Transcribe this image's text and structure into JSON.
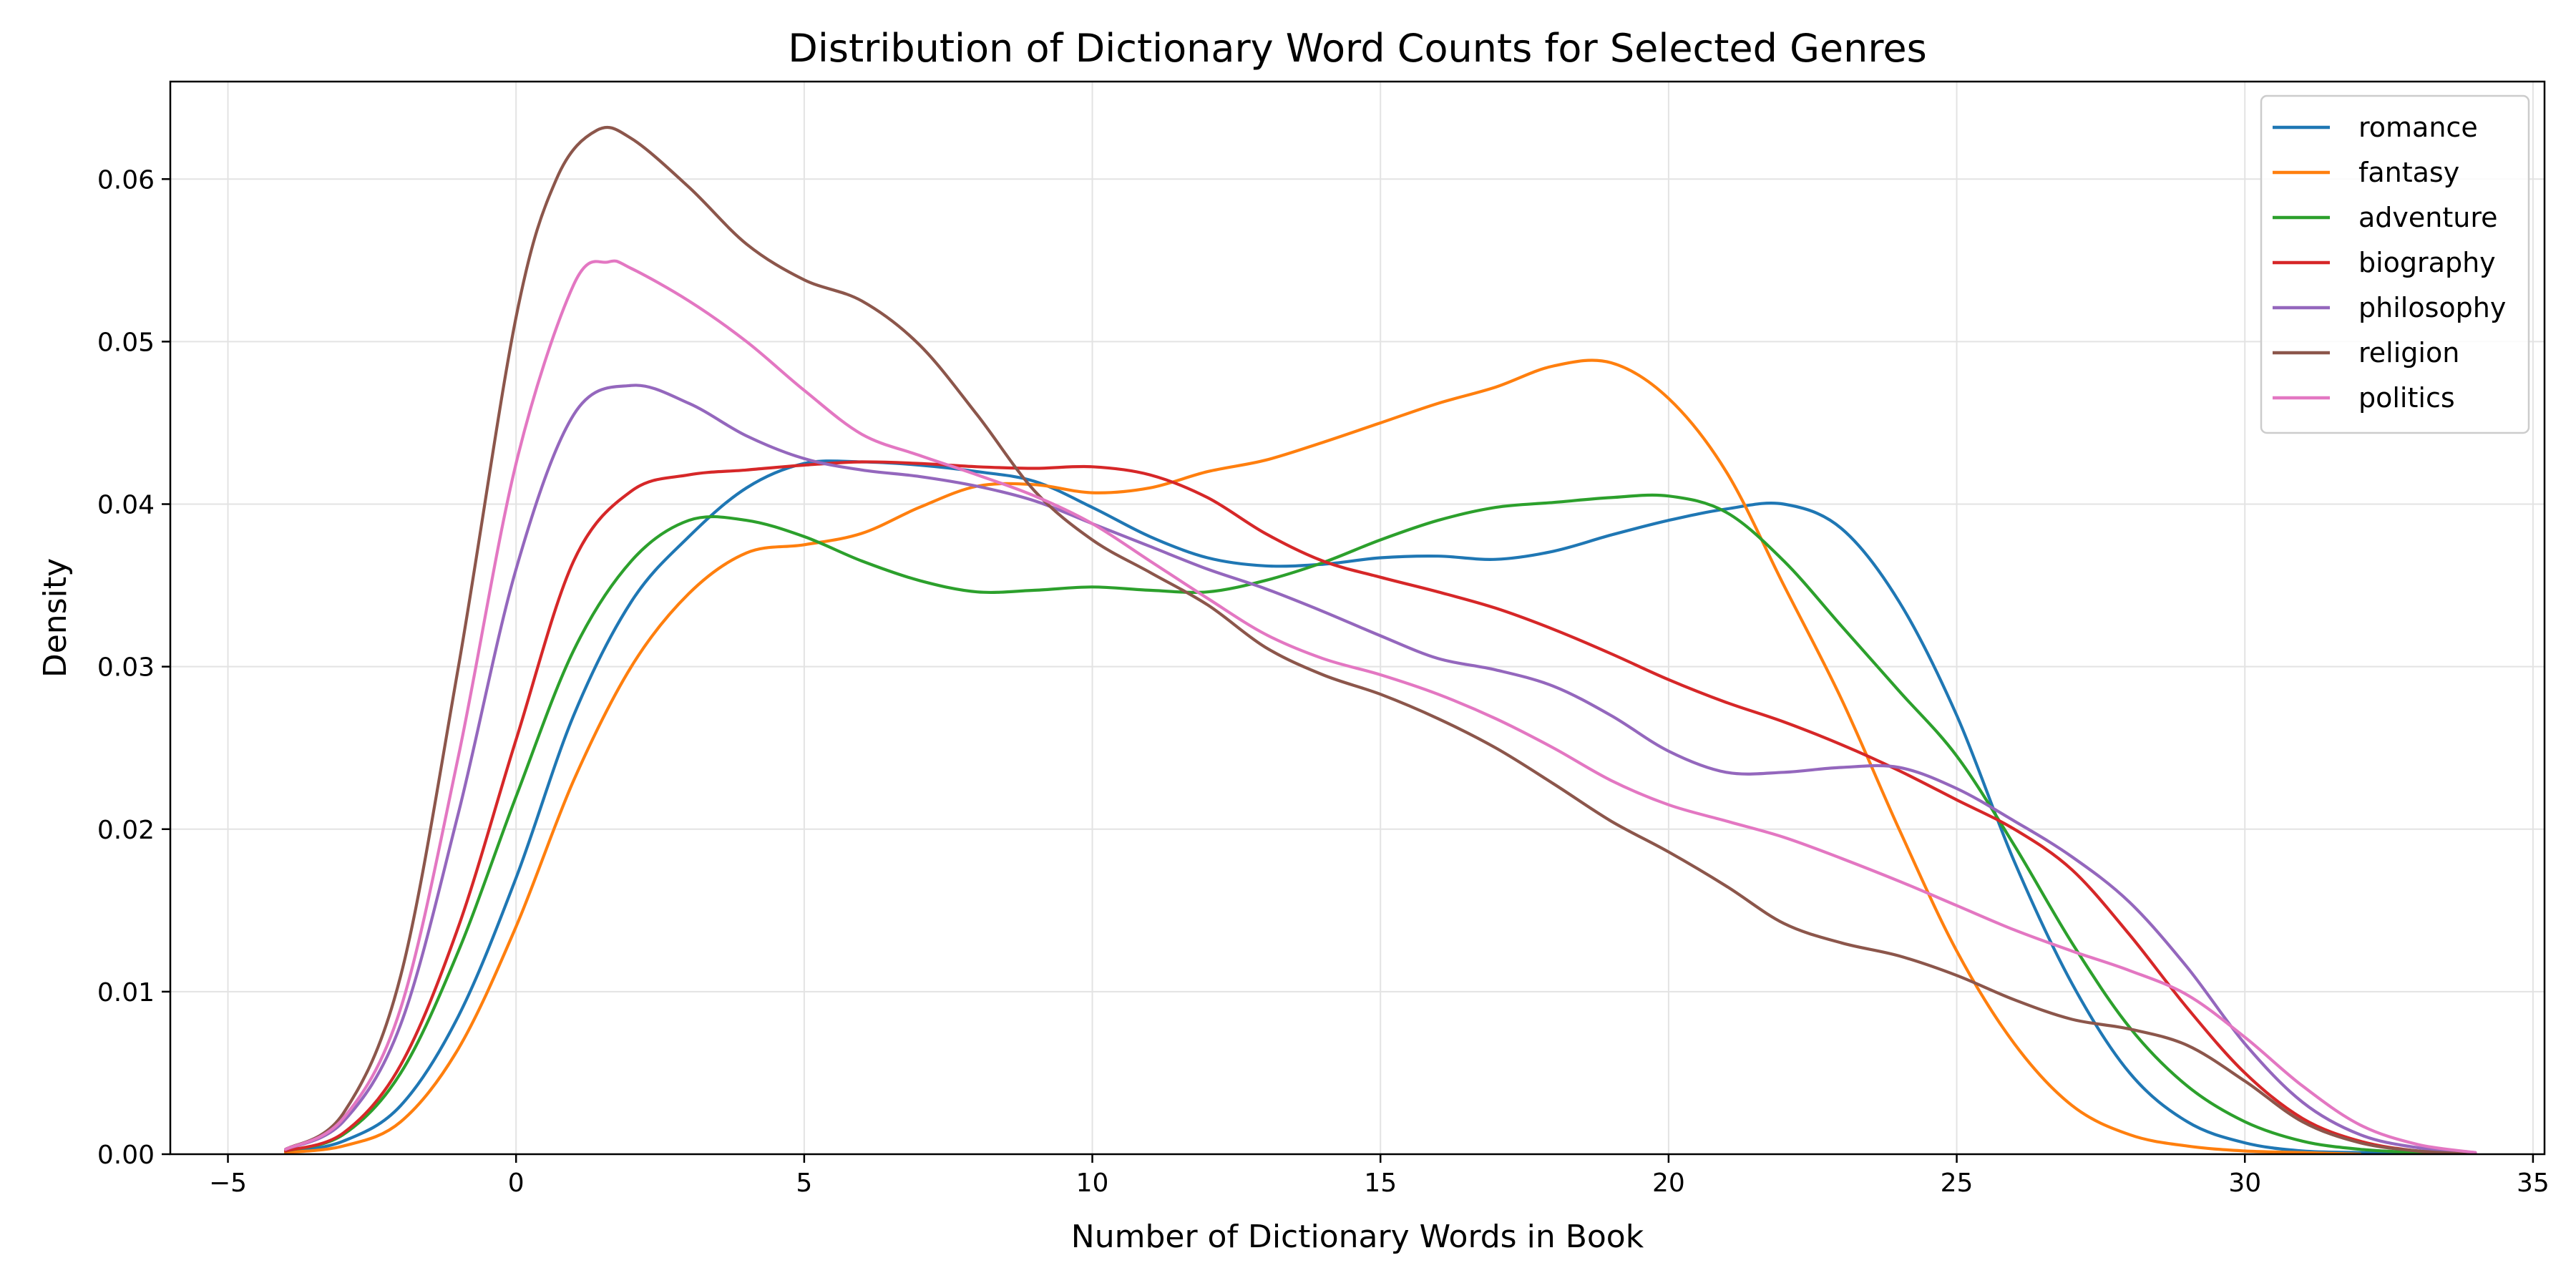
{
  "chart_data": {
    "type": "line",
    "title": "Distribution of Dictionary Word Counts for Selected Genres",
    "xlabel": "Number of Dictionary Words in Book",
    "ylabel": "Density",
    "xlim": [
      -6,
      35.2
    ],
    "ylim": [
      0,
      0.066
    ],
    "xticks": [
      -5,
      0,
      5,
      10,
      15,
      20,
      25,
      30,
      35
    ],
    "yticks": [
      0.0,
      0.01,
      0.02,
      0.03,
      0.04,
      0.05,
      0.06
    ],
    "xtick_labels": [
      "−5",
      "0",
      "5",
      "10",
      "15",
      "20",
      "25",
      "30",
      "35"
    ],
    "ytick_labels": [
      "0.00",
      "0.01",
      "0.02",
      "0.03",
      "0.04",
      "0.05",
      "0.06"
    ],
    "grid": true,
    "legend_position": "top-right",
    "series": [
      {
        "name": "romance",
        "color": "#1f77b4",
        "points": [
          [
            -4,
            0.0001
          ],
          [
            -3,
            0.0008
          ],
          [
            -2,
            0.003
          ],
          [
            -1,
            0.0085
          ],
          [
            0,
            0.017
          ],
          [
            1,
            0.027
          ],
          [
            2,
            0.034
          ],
          [
            3,
            0.038
          ],
          [
            4,
            0.041
          ],
          [
            5,
            0.0425
          ],
          [
            6,
            0.0426
          ],
          [
            7,
            0.0424
          ],
          [
            8,
            0.042
          ],
          [
            9,
            0.0414
          ],
          [
            10,
            0.0398
          ],
          [
            11,
            0.038
          ],
          [
            12,
            0.0367
          ],
          [
            13,
            0.0362
          ],
          [
            14,
            0.0363
          ],
          [
            15,
            0.0367
          ],
          [
            16,
            0.0368
          ],
          [
            17,
            0.0366
          ],
          [
            18,
            0.0371
          ],
          [
            19,
            0.0381
          ],
          [
            20,
            0.039
          ],
          [
            21,
            0.0397
          ],
          [
            22,
            0.04
          ],
          [
            23,
            0.0385
          ],
          [
            24,
            0.034
          ],
          [
            25,
            0.027
          ],
          [
            26,
            0.018
          ],
          [
            27,
            0.0105
          ],
          [
            28,
            0.005
          ],
          [
            29,
            0.002
          ],
          [
            30,
            0.0007
          ],
          [
            31,
            0.0002
          ],
          [
            32,
            0.0001
          ],
          [
            33,
            0
          ]
        ]
      },
      {
        "name": "fantasy",
        "color": "#ff7f0e",
        "points": [
          [
            -4,
            0.0001
          ],
          [
            -3,
            0.0005
          ],
          [
            -2,
            0.002
          ],
          [
            -1,
            0.0065
          ],
          [
            0,
            0.014
          ],
          [
            1,
            0.023
          ],
          [
            2,
            0.03
          ],
          [
            3,
            0.0345
          ],
          [
            4,
            0.037
          ],
          [
            5,
            0.0375
          ],
          [
            6,
            0.0382
          ],
          [
            7,
            0.0398
          ],
          [
            8,
            0.0411
          ],
          [
            9,
            0.0412
          ],
          [
            10,
            0.0407
          ],
          [
            11,
            0.041
          ],
          [
            12,
            0.042
          ],
          [
            13,
            0.0427
          ],
          [
            14,
            0.0438
          ],
          [
            15,
            0.045
          ],
          [
            16,
            0.0462
          ],
          [
            17,
            0.0472
          ],
          [
            18,
            0.0485
          ],
          [
            19,
            0.0487
          ],
          [
            20,
            0.0465
          ],
          [
            21,
            0.042
          ],
          [
            22,
            0.035
          ],
          [
            23,
            0.028
          ],
          [
            24,
            0.02
          ],
          [
            25,
            0.0125
          ],
          [
            26,
            0.0068
          ],
          [
            27,
            0.003
          ],
          [
            28,
            0.0012
          ],
          [
            29,
            0.0005
          ],
          [
            30,
            0.0002
          ],
          [
            31,
            0.0001
          ],
          [
            32,
            0
          ]
        ]
      },
      {
        "name": "adventure",
        "color": "#2ca02c",
        "points": [
          [
            -4,
            0.0002
          ],
          [
            -3,
            0.0012
          ],
          [
            -2,
            0.005
          ],
          [
            -1,
            0.0125
          ],
          [
            0,
            0.022
          ],
          [
            1,
            0.031
          ],
          [
            2,
            0.0365
          ],
          [
            3,
            0.039
          ],
          [
            4,
            0.039
          ],
          [
            5,
            0.038
          ],
          [
            6,
            0.0365
          ],
          [
            7,
            0.0353
          ],
          [
            8,
            0.0346
          ],
          [
            9,
            0.0347
          ],
          [
            10,
            0.0349
          ],
          [
            11,
            0.0347
          ],
          [
            12,
            0.0346
          ],
          [
            13,
            0.0353
          ],
          [
            14,
            0.0364
          ],
          [
            15,
            0.0378
          ],
          [
            16,
            0.039
          ],
          [
            17,
            0.0398
          ],
          [
            18,
            0.0401
          ],
          [
            19,
            0.0404
          ],
          [
            20,
            0.0405
          ],
          [
            21,
            0.0395
          ],
          [
            22,
            0.0365
          ],
          [
            23,
            0.0325
          ],
          [
            24,
            0.0285
          ],
          [
            25,
            0.0245
          ],
          [
            26,
            0.019
          ],
          [
            27,
            0.013
          ],
          [
            28,
            0.0078
          ],
          [
            29,
            0.0042
          ],
          [
            30,
            0.002
          ],
          [
            31,
            0.0008
          ],
          [
            32,
            0.0003
          ],
          [
            33,
            0.0001
          ],
          [
            34,
            0
          ]
        ]
      },
      {
        "name": "biography",
        "color": "#d62728",
        "points": [
          [
            -4,
            0.0002
          ],
          [
            -3,
            0.0013
          ],
          [
            -2,
            0.0055
          ],
          [
            -1,
            0.014
          ],
          [
            0,
            0.0255
          ],
          [
            1,
            0.0365
          ],
          [
            2,
            0.0408
          ],
          [
            3,
            0.0418
          ],
          [
            4,
            0.0421
          ],
          [
            5,
            0.0424
          ],
          [
            6,
            0.0426
          ],
          [
            7,
            0.0425
          ],
          [
            8,
            0.0423
          ],
          [
            9,
            0.0422
          ],
          [
            10,
            0.0423
          ],
          [
            11,
            0.0418
          ],
          [
            12,
            0.0404
          ],
          [
            13,
            0.0382
          ],
          [
            14,
            0.0365
          ],
          [
            15,
            0.0355
          ],
          [
            16,
            0.0346
          ],
          [
            17,
            0.0336
          ],
          [
            18,
            0.0323
          ],
          [
            19,
            0.0308
          ],
          [
            20,
            0.0292
          ],
          [
            21,
            0.0278
          ],
          [
            22,
            0.0266
          ],
          [
            23,
            0.0252
          ],
          [
            24,
            0.0236
          ],
          [
            25,
            0.0218
          ],
          [
            26,
            0.02
          ],
          [
            27,
            0.0175
          ],
          [
            28,
            0.0135
          ],
          [
            29,
            0.009
          ],
          [
            30,
            0.005
          ],
          [
            31,
            0.0022
          ],
          [
            32,
            0.0008
          ],
          [
            33,
            0.0002
          ],
          [
            34,
            0
          ]
        ]
      },
      {
        "name": "philosophy",
        "color": "#9467bd",
        "points": [
          [
            -4,
            0.0003
          ],
          [
            -3,
            0.002
          ],
          [
            -2,
            0.008
          ],
          [
            -1,
            0.021
          ],
          [
            0,
            0.036
          ],
          [
            1,
            0.0455
          ],
          [
            2,
            0.0473
          ],
          [
            3,
            0.0462
          ],
          [
            4,
            0.0442
          ],
          [
            5,
            0.0428
          ],
          [
            6,
            0.0421
          ],
          [
            7,
            0.0417
          ],
          [
            8,
            0.0411
          ],
          [
            9,
            0.0402
          ],
          [
            10,
            0.0388
          ],
          [
            11,
            0.0374
          ],
          [
            12,
            0.036
          ],
          [
            13,
            0.0348
          ],
          [
            14,
            0.0334
          ],
          [
            15,
            0.0319
          ],
          [
            16,
            0.0305
          ],
          [
            17,
            0.0298
          ],
          [
            18,
            0.0288
          ],
          [
            19,
            0.027
          ],
          [
            20,
            0.0248
          ],
          [
            21,
            0.0235
          ],
          [
            22,
            0.0235
          ],
          [
            23,
            0.0238
          ],
          [
            24,
            0.0238
          ],
          [
            25,
            0.0225
          ],
          [
            26,
            0.0205
          ],
          [
            27,
            0.0183
          ],
          [
            28,
            0.0155
          ],
          [
            29,
            0.0115
          ],
          [
            30,
            0.0068
          ],
          [
            31,
            0.0032
          ],
          [
            32,
            0.0012
          ],
          [
            33,
            0.0004
          ],
          [
            34,
            0.0001
          ]
        ]
      },
      {
        "name": "religion",
        "color": "#8c564b",
        "points": [
          [
            -4,
            0.0003
          ],
          [
            -3,
            0.0025
          ],
          [
            -2,
            0.011
          ],
          [
            -1,
            0.03
          ],
          [
            0,
            0.0515
          ],
          [
            0.7,
            0.06
          ],
          [
            1.4,
            0.063
          ],
          [
            2,
            0.0625
          ],
          [
            3,
            0.0595
          ],
          [
            4,
            0.056
          ],
          [
            5,
            0.0538
          ],
          [
            6,
            0.0525
          ],
          [
            7,
            0.0498
          ],
          [
            8,
            0.0455
          ],
          [
            9,
            0.0408
          ],
          [
            10,
            0.0378
          ],
          [
            11,
            0.0358
          ],
          [
            12,
            0.0338
          ],
          [
            13,
            0.0312
          ],
          [
            14,
            0.0295
          ],
          [
            15,
            0.0283
          ],
          [
            16,
            0.0268
          ],
          [
            17,
            0.025
          ],
          [
            18,
            0.0228
          ],
          [
            19,
            0.0205
          ],
          [
            20,
            0.0186
          ],
          [
            21,
            0.0165
          ],
          [
            22,
            0.0142
          ],
          [
            23,
            0.013
          ],
          [
            24,
            0.0122
          ],
          [
            25,
            0.011
          ],
          [
            26,
            0.0095
          ],
          [
            27,
            0.0083
          ],
          [
            28,
            0.0077
          ],
          [
            29,
            0.0067
          ],
          [
            30,
            0.0045
          ],
          [
            31,
            0.002
          ],
          [
            32,
            0.0007
          ],
          [
            33,
            0.0002
          ],
          [
            34,
            0
          ]
        ]
      },
      {
        "name": "politics",
        "color": "#e377c2",
        "points": [
          [
            -4,
            0.0003
          ],
          [
            -3,
            0.0022
          ],
          [
            -2,
            0.009
          ],
          [
            -1,
            0.0245
          ],
          [
            0,
            0.0425
          ],
          [
            1,
            0.0535
          ],
          [
            1.6,
            0.0549
          ],
          [
            2,
            0.0545
          ],
          [
            3,
            0.0525
          ],
          [
            4,
            0.05
          ],
          [
            5,
            0.047
          ],
          [
            6,
            0.0443
          ],
          [
            7,
            0.043
          ],
          [
            8,
            0.0418
          ],
          [
            9,
            0.0405
          ],
          [
            10,
            0.0388
          ],
          [
            11,
            0.0365
          ],
          [
            12,
            0.0342
          ],
          [
            13,
            0.032
          ],
          [
            14,
            0.0305
          ],
          [
            15,
            0.0295
          ],
          [
            16,
            0.0283
          ],
          [
            17,
            0.0268
          ],
          [
            18,
            0.025
          ],
          [
            19,
            0.023
          ],
          [
            20,
            0.0215
          ],
          [
            21,
            0.0205
          ],
          [
            22,
            0.0195
          ],
          [
            23,
            0.0182
          ],
          [
            24,
            0.0168
          ],
          [
            25,
            0.0153
          ],
          [
            26,
            0.0138
          ],
          [
            27,
            0.0125
          ],
          [
            28,
            0.0113
          ],
          [
            29,
            0.0098
          ],
          [
            30,
            0.0072
          ],
          [
            31,
            0.0042
          ],
          [
            32,
            0.0018
          ],
          [
            33,
            0.0006
          ],
          [
            34,
            0.0001
          ]
        ]
      }
    ]
  }
}
